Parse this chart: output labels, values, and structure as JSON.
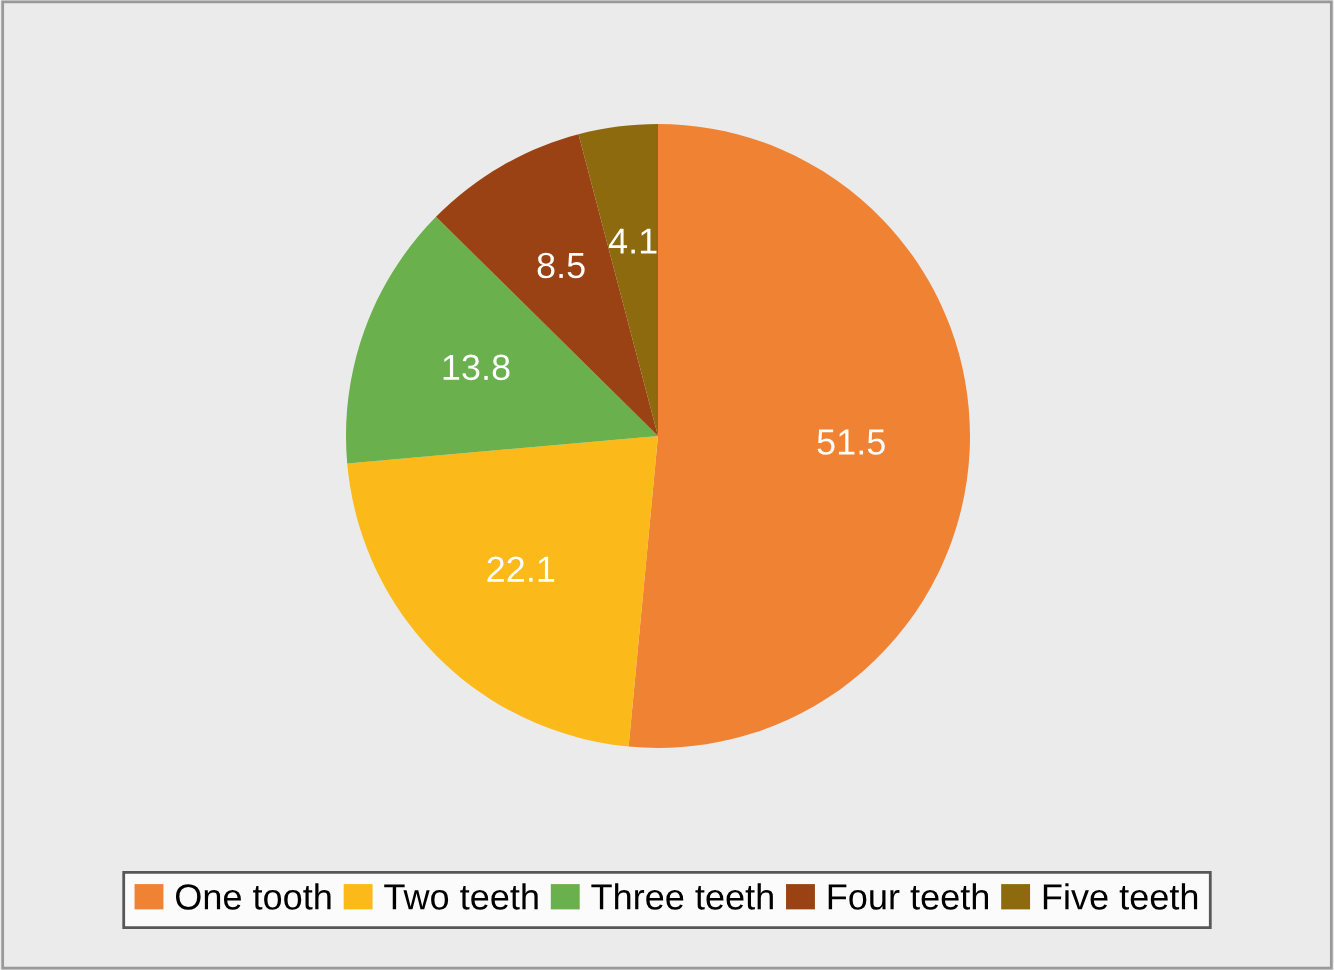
{
  "chart_data": {
    "type": "pie",
    "categories": [
      "One tooth",
      "Two teeth",
      "Three teeth",
      "Four teeth",
      "Five teeth"
    ],
    "values": [
      51.5,
      22.1,
      13.8,
      8.5,
      4.1
    ],
    "colors": [
      "#f08233",
      "#fbb91a",
      "#6ab04c",
      "#9a4213",
      "#8d6a0e"
    ],
    "data_labels": true,
    "legend": "bottom"
  }
}
